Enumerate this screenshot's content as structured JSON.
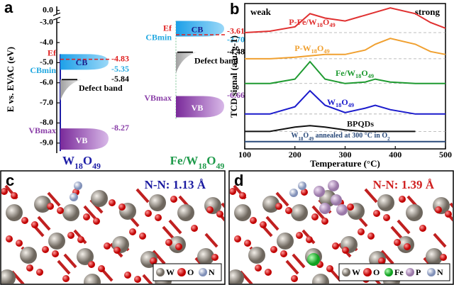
{
  "chart_data": [
    {
      "type": "band-diagram",
      "panel_label": "a",
      "ylabel": "E vs. EVAC (eV)",
      "ylim": [
        -9.5,
        0.2
      ],
      "axis_break": [
        -2.7,
        -0.3
      ],
      "yticks": [
        {
          "value": 0,
          "label": "0.0"
        },
        {
          "value": -3,
          "label": "-3.0"
        },
        {
          "value": -4,
          "label": "-4.0"
        },
        {
          "value": -5,
          "label": "-5.0"
        },
        {
          "value": -6,
          "label": "-6.0"
        },
        {
          "value": -7,
          "label": "-7.0"
        },
        {
          "value": -8,
          "label": "-8.0"
        },
        {
          "value": -9,
          "label": "-9.0"
        }
      ],
      "level_colors": [
        "#e02020",
        "#22a8e0",
        "#000000",
        "#8a3fa8"
      ],
      "series": [
        {
          "name": "W18O49",
          "color": "#1c1ca6",
          "values": [
            -4.83,
            -5.35,
            -5.84,
            -8.27
          ],
          "value_labels": [
            "-4.83",
            "-5.35",
            "-5.84",
            "-8.27"
          ],
          "level_labels": [
            "Ef",
            "CBmin",
            "Defect band",
            "VBmax"
          ],
          "band_labels": [
            "CB",
            "VB"
          ]
        },
        {
          "name": "Fe/W18O49",
          "color": "#1e9a4a",
          "values": [
            -3.61,
            -3.7,
            -4.48,
            -6.66
          ],
          "value_labels": [
            "-3.61",
            "-3.70",
            "-4.48",
            "-6.66"
          ],
          "level_labels": [
            "Ef",
            "CBmin",
            "Defect band",
            "VBmax"
          ],
          "band_labels": [
            "CB",
            "VB"
          ]
        }
      ]
    },
    {
      "type": "line",
      "panel_label": "b",
      "xlabel": "Temperature (°C)",
      "ylabel": "TCD signal (a.u. g-1)",
      "annotations": [
        "weak",
        "strong"
      ],
      "xlim": [
        100,
        500
      ],
      "xticks": [
        100,
        200,
        300,
        400,
        500
      ],
      "ylim": [
        0,
        10
      ],
      "x": [
        100,
        150,
        200,
        230,
        260,
        300,
        340,
        360,
        390,
        440,
        470,
        500
      ],
      "series": [
        {
          "name": "P-Fe/W18O49",
          "color": "#e03030",
          "values": [
            8.0,
            8.1,
            8.4,
            9.3,
            9.0,
            8.8,
            9.2,
            9.4,
            9.7,
            9.3,
            8.7,
            8.3
          ]
        },
        {
          "name": "P-W18O49",
          "color": "#f0a030",
          "values": [
            6.2,
            6.2,
            6.3,
            6.4,
            6.5,
            6.5,
            6.8,
            7.2,
            7.6,
            7.2,
            6.7,
            6.5
          ]
        },
        {
          "name": "Fe/W18O49",
          "color": "#1e9a30",
          "values": [
            4.5,
            4.5,
            4.8,
            6.0,
            4.8,
            4.5,
            4.6,
            4.8,
            4.6,
            4.5,
            4.5,
            4.5
          ]
        },
        {
          "name": "W18O49",
          "color": "#1a1acc",
          "values": [
            2.4,
            2.4,
            2.9,
            4.0,
            3.0,
            2.5,
            2.8,
            3.0,
            2.7,
            2.4,
            2.4,
            2.4
          ]
        },
        {
          "name": "BPQDs",
          "color": "#111111",
          "values": [
            1.2,
            1.2,
            1.5,
            1.6,
            1.5,
            1.3,
            1.2,
            1.2,
            1.2,
            1.2,
            null,
            null
          ]
        },
        {
          "name": "W18O49 annealed at 300 °C in O2",
          "color": "#2a4a7a",
          "values": [
            0.5,
            0.5,
            0.5,
            0.5,
            0.5,
            0.5,
            0.5,
            0.5,
            0.5,
            0.5,
            0.5,
            0.5
          ]
        }
      ]
    }
  ],
  "panels": [
    {
      "label": "c",
      "annotation": "N-N: 1.13 Å",
      "legend": [
        "W",
        "O",
        "N"
      ]
    },
    {
      "label": "d",
      "annotation": "N-N: 1.39 Å",
      "legend": [
        "W",
        "O",
        "Fe",
        "P",
        "N"
      ]
    }
  ]
}
